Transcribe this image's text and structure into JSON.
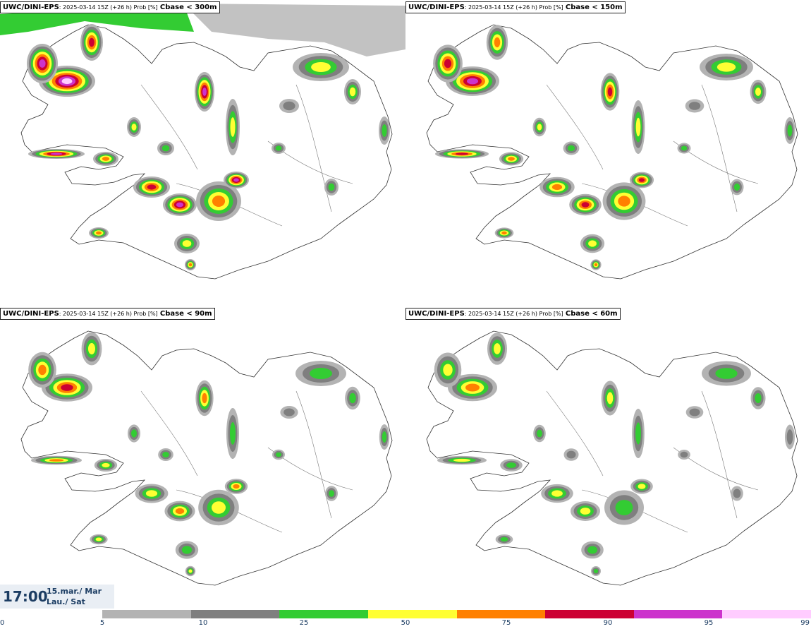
{
  "panels": [
    {
      "model": "UWC/DINI-EPS",
      "meta": ": 2025-03-14 15Z (+26 h) Prob [%]",
      "threshold": "Cbase < 300m",
      "level": 1.0
    },
    {
      "model": "UWC/DINI-EPS",
      "meta": ": 2025-03-14 15Z (+26 h) Prob [%]",
      "threshold": "Cbase < 150m",
      "level": 0.8
    },
    {
      "model": "UWC/DINI-EPS",
      "meta": ": 2025-03-14 15Z (+26 h) Prob [%]",
      "threshold": "Cbase < 90m",
      "level": 0.6
    },
    {
      "model": "UWC/DINI-EPS",
      "meta": ": 2025-03-14 15Z (+26 h) Prob [%]",
      "threshold": "Cbase < 60m",
      "level": 0.5
    }
  ],
  "time": {
    "clock": "17:00",
    "date_line1": "15.mar./ Mar",
    "date_line2": "Lau./ Sat"
  },
  "legend": {
    "ticks": [
      "0",
      "5",
      "10",
      "25",
      "50",
      "75",
      "90",
      "95",
      "99"
    ],
    "colors": [
      "#b3b3b3",
      "#7f7f7f",
      "#33cc33",
      "#ffff33",
      "#ff8000",
      "#cc0033",
      "#cc33cc",
      "#ffccff"
    ]
  }
}
